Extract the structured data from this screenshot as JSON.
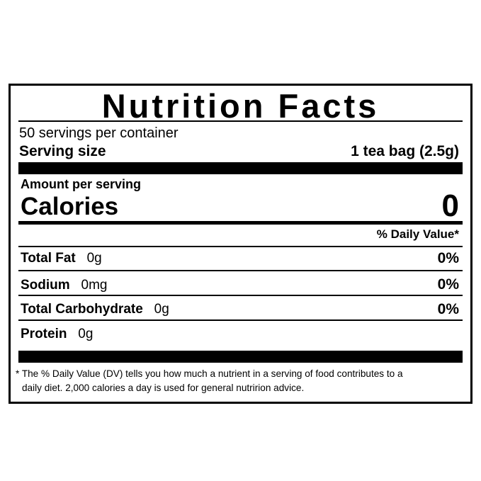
{
  "title": "Nutrition Facts",
  "servings_per_container": "50 servings per container",
  "serving_size": {
    "label": "Serving size",
    "value": "1 tea bag (2.5g)"
  },
  "amount_per_serving": "Amount per serving",
  "calories": {
    "label": "Calories",
    "value": "0"
  },
  "daily_value_header": "% Daily Value*",
  "nutrients": [
    {
      "label": "Total Fat",
      "amount": "0g",
      "dv": "0%"
    },
    {
      "label": "Sodium",
      "amount": "0mg",
      "dv": "0%"
    },
    {
      "label": "Total Carbohydrate",
      "amount": "0g",
      "dv": "0%"
    },
    {
      "label": "Protein",
      "amount": "0g",
      "dv": ""
    }
  ],
  "footnote": {
    "line1": "* The % Daily Value (DV) tells you how much a nutrient in a serving of food contributes to a",
    "line2": "daily diet. 2,000 calories a day is used for general nutririon advice."
  }
}
